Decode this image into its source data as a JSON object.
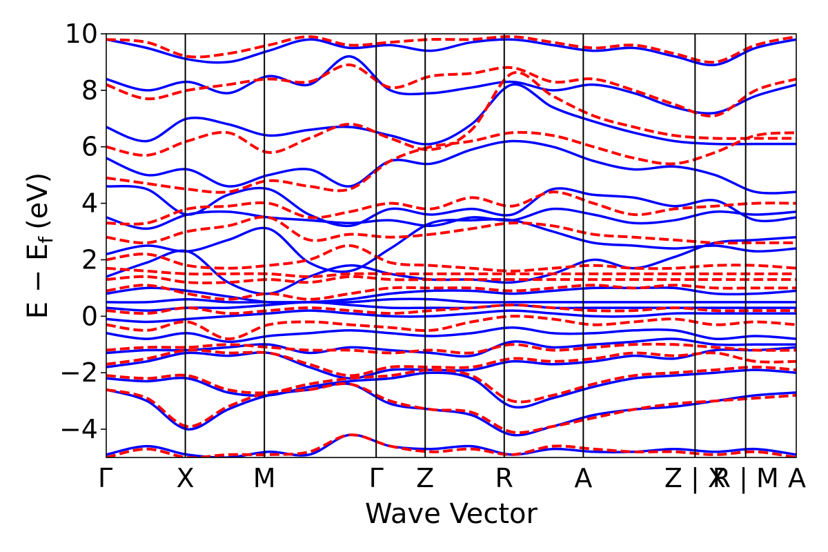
{
  "chart_data": {
    "type": "line",
    "title": "",
    "xlabel": "Wave Vector",
    "ylabel": "E − E_f (eV)",
    "ylabel_parts": {
      "main": "E − E",
      "sub": "f",
      "unit": "(eV)"
    },
    "ylim": [
      -5,
      10
    ],
    "y_ticks": [
      -4,
      -2,
      0,
      2,
      4,
      6,
      8,
      10
    ],
    "y_tick_labels": [
      "−4",
      "−2",
      "0",
      "2",
      "4",
      "6",
      "8",
      "10"
    ],
    "grid": false,
    "legend": "none",
    "kpath": {
      "labels": [
        "Γ",
        "X",
        "M",
        "Γ",
        "Z",
        "R",
        "A",
        "Z | X",
        "R | M",
        "A"
      ],
      "positions": [
        0,
        0.5,
        1.0,
        1.707,
        2.017,
        2.517,
        3.017,
        3.724,
        4.044,
        4.364
      ]
    },
    "series": [
      {
        "style": "solid",
        "color": "#0000ff",
        "bands": [
          [
            -4.9,
            -4.6,
            -4.9,
            -5.0,
            -4.8,
            -4.9,
            -4.2,
            -4.6,
            -4.7,
            -4.6,
            -4.9,
            -4.7,
            -4.8,
            -4.8,
            -4.7,
            -4.8,
            -4.7,
            -4.9
          ],
          [
            -2.6,
            -3.0,
            -4.0,
            -3.3,
            -2.8,
            -2.6,
            -2.4,
            -3.1,
            -3.3,
            -3.5,
            -4.2,
            -3.9,
            -3.5,
            -3.3,
            -3.2,
            -3.0,
            -2.8,
            -2.7
          ],
          [
            -2.2,
            -2.3,
            -2.2,
            -2.7,
            -2.8,
            -2.5,
            -2.3,
            -2.2,
            -2.0,
            -2.2,
            -3.2,
            -2.9,
            -2.5,
            -2.2,
            -2.1,
            -2.0,
            -1.9,
            -2.0
          ],
          [
            -1.8,
            -1.6,
            -1.3,
            -1.4,
            -1.3,
            -1.8,
            -2.2,
            -1.9,
            -1.9,
            -1.9,
            -1.6,
            -1.7,
            -1.6,
            -1.4,
            -1.5,
            -1.2,
            -1.2,
            -1.1
          ],
          [
            -1.3,
            -1.2,
            -1.2,
            -1.1,
            -1.0,
            -1.3,
            -1.1,
            -1.2,
            -1.3,
            -1.4,
            -0.9,
            -1.1,
            -1.0,
            -0.9,
            -0.8,
            -1.0,
            -1.0,
            -1.0
          ],
          [
            -0.6,
            -0.8,
            -0.6,
            -0.9,
            -0.7,
            -0.6,
            -0.5,
            -0.6,
            -0.7,
            -0.6,
            -0.4,
            -0.6,
            -0.6,
            -0.5,
            -0.5,
            -0.8,
            -0.7,
            -0.8
          ],
          [
            -0.1,
            -0.2,
            -0.1,
            0.0,
            0.1,
            0.2,
            0.1,
            0.0,
            0.0,
            0.1,
            0.2,
            0.1,
            0.0,
            0.0,
            0.1,
            0.1,
            0.1,
            0.1
          ],
          [
            0.3,
            0.2,
            0.3,
            0.3,
            0.4,
            0.5,
            0.4,
            0.3,
            0.3,
            0.3,
            0.4,
            0.3,
            0.3,
            0.3,
            0.3,
            0.3,
            0.3,
            0.3
          ],
          [
            0.5,
            0.5,
            0.6,
            0.5,
            0.5,
            0.5,
            0.5,
            0.6,
            0.6,
            0.5,
            0.5,
            0.5,
            0.5,
            0.5,
            0.5,
            0.5,
            0.5,
            0.5
          ],
          [
            0.8,
            1.0,
            0.9,
            0.7,
            0.5,
            0.5,
            0.6,
            0.8,
            0.9,
            0.9,
            0.8,
            0.9,
            1.0,
            1.0,
            1.0,
            0.8,
            0.8,
            0.9
          ],
          [
            1.4,
            1.9,
            2.3,
            1.2,
            0.8,
            1.4,
            1.8,
            1.5,
            1.3,
            1.3,
            1.2,
            1.5,
            2.0,
            1.7,
            2.1,
            2.6,
            2.7,
            2.8
          ],
          [
            2.2,
            2.5,
            2.3,
            2.7,
            3.1,
            1.9,
            1.6,
            2.4,
            3.3,
            3.4,
            3.4,
            3.0,
            2.6,
            2.5,
            2.4,
            2.5,
            2.3,
            2.4
          ],
          [
            3.5,
            3.1,
            3.6,
            3.7,
            3.5,
            3.4,
            3.3,
            3.4,
            3.2,
            3.5,
            3.4,
            3.8,
            3.6,
            3.3,
            3.4,
            3.7,
            3.6,
            3.7
          ],
          [
            4.6,
            4.5,
            3.6,
            4.3,
            4.5,
            3.6,
            3.2,
            3.8,
            3.6,
            3.8,
            3.6,
            4.5,
            4.3,
            4.2,
            3.9,
            4.1,
            3.4,
            3.5
          ],
          [
            5.6,
            5.0,
            5.2,
            4.6,
            5.0,
            5.2,
            4.6,
            5.5,
            5.4,
            5.9,
            6.2,
            6.0,
            5.5,
            5.2,
            5.3,
            5.0,
            4.4,
            4.4
          ],
          [
            6.7,
            6.2,
            7.0,
            6.8,
            6.4,
            6.6,
            6.7,
            6.4,
            6.1,
            6.8,
            8.2,
            7.4,
            6.9,
            6.5,
            6.2,
            6.1,
            6.1,
            6.1
          ],
          [
            8.4,
            8.0,
            8.3,
            7.9,
            8.5,
            8.2,
            9.2,
            8.0,
            7.9,
            8.1,
            8.3,
            8.0,
            8.2,
            7.9,
            7.4,
            7.2,
            7.8,
            8.2
          ],
          [
            9.8,
            9.5,
            9.1,
            9.0,
            9.4,
            9.8,
            9.5,
            9.6,
            9.4,
            9.7,
            9.8,
            9.6,
            9.4,
            9.5,
            9.2,
            8.9,
            9.5,
            9.8
          ]
        ]
      },
      {
        "style": "dashed",
        "color": "#ff0000",
        "bands": [
          [
            -5.0,
            -4.7,
            -5.0,
            -4.9,
            -4.9,
            -4.8,
            -4.2,
            -4.6,
            -4.8,
            -4.7,
            -4.9,
            -4.6,
            -4.7,
            -4.8,
            -4.8,
            -4.9,
            -4.8,
            -5.0
          ],
          [
            -2.6,
            -2.9,
            -3.9,
            -3.2,
            -2.7,
            -2.6,
            -2.4,
            -3.0,
            -3.3,
            -3.4,
            -4.1,
            -3.9,
            -3.6,
            -3.3,
            -3.1,
            -3.0,
            -2.9,
            -2.8
          ],
          [
            -2.1,
            -2.2,
            -2.1,
            -2.6,
            -2.7,
            -2.4,
            -2.2,
            -2.1,
            -1.9,
            -2.1,
            -3.0,
            -2.8,
            -2.4,
            -2.1,
            -2.0,
            -1.9,
            -1.8,
            -1.9
          ],
          [
            -1.7,
            -1.5,
            -1.2,
            -1.3,
            -1.3,
            -1.7,
            -2.1,
            -1.8,
            -1.8,
            -1.8,
            -1.5,
            -1.6,
            -1.5,
            -1.3,
            -1.4,
            -1.3,
            -1.6,
            -1.6
          ],
          [
            -1.2,
            -1.1,
            -1.1,
            -1.0,
            -1.1,
            -1.2,
            -1.2,
            -1.3,
            -1.2,
            -1.3,
            -1.0,
            -1.2,
            -1.1,
            -1.0,
            -1.0,
            -1.1,
            -1.2,
            -1.2
          ],
          [
            -0.3,
            -0.5,
            -0.2,
            -0.8,
            -0.3,
            -0.2,
            -0.3,
            -0.4,
            -0.5,
            -0.2,
            0.0,
            -0.1,
            -0.3,
            -0.2,
            -0.1,
            -0.3,
            -0.2,
            -0.3
          ],
          [
            0.2,
            0.1,
            0.3,
            0.1,
            0.2,
            0.3,
            0.2,
            0.1,
            0.2,
            0.3,
            0.4,
            0.3,
            0.2,
            0.2,
            0.3,
            0.2,
            0.2,
            0.2
          ],
          [
            0.9,
            1.1,
            0.8,
            0.6,
            0.8,
            0.6,
            0.8,
            1.0,
            1.0,
            1.0,
            0.9,
            1.0,
            1.1,
            1.0,
            1.1,
            1.0,
            1.0,
            1.0
          ],
          [
            1.3,
            1.4,
            1.2,
            1.2,
            1.3,
            1.2,
            1.4,
            1.3,
            1.3,
            1.3,
            1.3,
            1.3,
            1.3,
            1.3,
            1.3,
            1.3,
            1.3,
            1.3
          ],
          [
            1.7,
            1.6,
            1.5,
            1.5,
            1.5,
            1.4,
            1.5,
            1.5,
            1.5,
            1.5,
            1.5,
            1.5,
            1.5,
            1.5,
            1.5,
            1.5,
            1.5,
            1.5
          ],
          [
            2.0,
            2.2,
            1.8,
            1.7,
            1.8,
            2.0,
            2.5,
            1.9,
            1.8,
            1.7,
            1.6,
            1.7,
            1.8,
            1.7,
            1.7,
            1.8,
            1.8,
            1.7
          ],
          [
            2.8,
            2.6,
            3.0,
            3.2,
            3.5,
            2.7,
            2.9,
            2.8,
            2.9,
            3.1,
            3.3,
            3.2,
            2.9,
            2.8,
            2.7,
            2.6,
            2.6,
            2.6
          ],
          [
            3.3,
            3.3,
            3.8,
            3.9,
            4.0,
            3.5,
            3.7,
            4.0,
            3.8,
            4.2,
            3.9,
            4.4,
            4.0,
            3.6,
            3.8,
            3.9,
            4.0,
            4.0
          ],
          [
            4.9,
            4.7,
            4.5,
            4.4,
            4.8,
            4.6,
            4.5,
            5.5,
            6.0,
            6.2,
            6.5,
            6.4,
            6.0,
            5.6,
            5.4,
            5.8,
            6.4,
            6.5
          ],
          [
            6.0,
            5.7,
            6.2,
            6.5,
            5.8,
            6.3,
            6.8,
            6.3,
            5.9,
            6.6,
            8.6,
            7.8,
            7.1,
            6.7,
            6.4,
            6.3,
            6.3,
            6.3
          ],
          [
            8.2,
            7.7,
            8.0,
            8.2,
            8.4,
            8.3,
            8.9,
            8.1,
            8.5,
            8.6,
            8.8,
            8.3,
            8.4,
            8.0,
            7.5,
            7.1,
            8.0,
            8.4
          ],
          [
            9.8,
            9.7,
            9.2,
            9.3,
            9.6,
            9.9,
            9.6,
            9.7,
            9.8,
            9.8,
            9.9,
            9.7,
            9.5,
            9.6,
            9.3,
            9.0,
            9.6,
            9.9
          ]
        ]
      }
    ]
  }
}
